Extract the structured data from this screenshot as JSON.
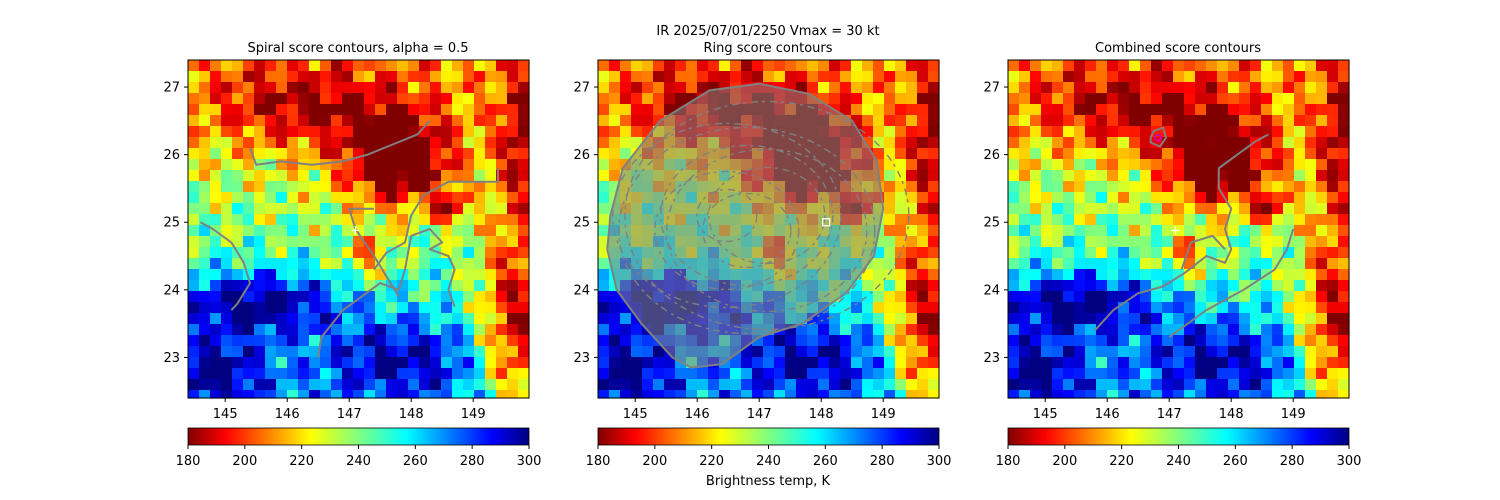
{
  "figure": {
    "suptitle_line1": "IR  2025/07/01/2250    Vmax = 30 kt",
    "colorbar_label": "Brightness temp, K"
  },
  "panels": [
    {
      "title": "Spiral score contours, alpha =  0.5",
      "marker": "plus"
    },
    {
      "title": "Ring score contours",
      "marker": "square"
    },
    {
      "title": "Combined score contours",
      "marker": "plus"
    }
  ],
  "colors": {
    "contour": "#808080",
    "marker": "#ffffff",
    "peak_marker": "#cc00cc"
  },
  "chart_data": [
    {
      "type": "heatmap",
      "title": "Spiral score contours, alpha =  0.5",
      "xlim": [
        144.4,
        149.9
      ],
      "ylim": [
        22.4,
        27.4
      ],
      "xticks": [
        145,
        146,
        147,
        148,
        149
      ],
      "yticks": [
        23,
        24,
        25,
        26,
        27
      ],
      "colormap": "jet_r",
      "colorbar": {
        "range": [
          180,
          300
        ],
        "ticks": [
          180,
          200,
          220,
          240,
          260,
          280,
          300
        ]
      },
      "center_marker": {
        "lon": 147.1,
        "lat": 24.88
      },
      "contours": [
        [
          [
            145.4,
            26.1
          ],
          [
            145.5,
            25.85
          ],
          [
            145.9,
            25.9
          ],
          [
            146.4,
            25.85
          ],
          [
            146.9,
            25.9
          ],
          [
            147.3,
            26.0
          ],
          [
            147.7,
            26.15
          ],
          [
            148.1,
            26.3
          ],
          [
            148.3,
            26.5
          ]
        ],
        [
          [
            144.6,
            25.0
          ],
          [
            144.8,
            24.9
          ],
          [
            145.1,
            24.7
          ],
          [
            145.3,
            24.4
          ],
          [
            145.4,
            24.1
          ],
          [
            145.2,
            23.8
          ],
          [
            145.1,
            23.7
          ]
        ],
        [
          [
            146.5,
            23.0
          ],
          [
            146.55,
            23.3
          ],
          [
            146.9,
            23.7
          ],
          [
            147.2,
            23.9
          ],
          [
            147.5,
            24.1
          ],
          [
            147.8,
            24.0
          ],
          [
            147.9,
            24.3
          ],
          [
            148.0,
            24.8
          ],
          [
            148.3,
            24.9
          ],
          [
            148.5,
            24.7
          ],
          [
            148.3,
            24.6
          ],
          [
            148.6,
            24.5
          ],
          [
            148.7,
            24.3
          ],
          [
            148.6,
            24.0
          ],
          [
            148.7,
            23.75
          ]
        ],
        [
          [
            147.4,
            24.3
          ],
          [
            147.6,
            24.55
          ],
          [
            147.9,
            24.7
          ],
          [
            148.0,
            25.1
          ],
          [
            148.2,
            25.4
          ],
          [
            148.6,
            25.6
          ],
          [
            149.0,
            25.6
          ],
          [
            149.4,
            25.6
          ],
          [
            149.4,
            25.8
          ]
        ],
        [
          [
            147.8,
            23.9
          ],
          [
            147.4,
            24.5
          ],
          [
            147.1,
            24.9
          ],
          [
            147.0,
            25.2
          ],
          [
            147.4,
            25.2
          ]
        ]
      ]
    },
    {
      "type": "heatmap",
      "title": "Ring score contours",
      "xlim": [
        144.4,
        149.9
      ],
      "ylim": [
        22.4,
        27.4
      ],
      "xticks": [
        145,
        146,
        147,
        148,
        149
      ],
      "yticks": [
        23,
        24,
        25,
        26,
        27
      ],
      "colormap": "jet_r",
      "colorbar": {
        "range": [
          180,
          300
        ],
        "ticks": [
          180,
          200,
          220,
          240,
          260,
          280,
          300
        ]
      },
      "center_marker": {
        "lon": 148.08,
        "lat": 25.0
      },
      "contour_region": [
        [
          144.6,
          25.1
        ],
        [
          144.8,
          25.8
        ],
        [
          145.4,
          26.5
        ],
        [
          146.2,
          26.95
        ],
        [
          147.0,
          27.05
        ],
        [
          147.8,
          26.9
        ],
        [
          148.5,
          26.5
        ],
        [
          148.9,
          25.9
        ],
        [
          149.0,
          25.2
        ],
        [
          148.85,
          24.5
        ],
        [
          148.4,
          23.95
        ],
        [
          147.7,
          23.5
        ],
        [
          147.0,
          23.3
        ],
        [
          146.4,
          22.9
        ],
        [
          145.9,
          22.85
        ],
        [
          145.6,
          23.0
        ],
        [
          145.1,
          23.5
        ],
        [
          144.7,
          24.0
        ],
        [
          144.55,
          24.6
        ]
      ],
      "contours": []
    },
    {
      "type": "heatmap",
      "title": "Combined score contours",
      "xlim": [
        144.4,
        149.9
      ],
      "ylim": [
        22.4,
        27.4
      ],
      "xticks": [
        145,
        146,
        147,
        148,
        149
      ],
      "yticks": [
        23,
        24,
        25,
        26,
        27
      ],
      "colormap": "jet_r",
      "colorbar": {
        "range": [
          180,
          300
        ],
        "ticks": [
          180,
          200,
          220,
          240,
          260,
          280,
          300
        ]
      },
      "center_marker": {
        "lon": 147.1,
        "lat": 24.88
      },
      "peak_marker": {
        "lon": 146.82,
        "lat": 26.25
      },
      "contours": [
        [
          [
            145.8,
            23.4
          ],
          [
            146.1,
            23.7
          ],
          [
            146.5,
            23.95
          ],
          [
            146.9,
            24.05
          ],
          [
            147.25,
            24.25
          ],
          [
            147.6,
            24.5
          ],
          [
            147.9,
            24.4
          ],
          [
            148.0,
            24.6
          ],
          [
            147.9,
            24.9
          ],
          [
            148.0,
            25.2
          ],
          [
            147.8,
            25.5
          ],
          [
            147.8,
            25.8
          ],
          [
            148.1,
            26.0
          ],
          [
            148.4,
            26.2
          ],
          [
            148.6,
            26.3
          ]
        ],
        [
          [
            147.2,
            24.3
          ],
          [
            147.35,
            24.7
          ],
          [
            147.7,
            24.8
          ],
          [
            147.9,
            24.6
          ]
        ],
        [
          [
            147.0,
            23.3
          ],
          [
            147.6,
            23.7
          ],
          [
            148.2,
            24.0
          ],
          [
            148.7,
            24.3
          ],
          [
            148.9,
            24.6
          ],
          [
            149.0,
            24.9
          ]
        ],
        [
          [
            146.7,
            26.25
          ],
          [
            146.75,
            26.35
          ],
          [
            146.9,
            26.4
          ],
          [
            146.95,
            26.25
          ],
          [
            146.85,
            26.12
          ],
          [
            146.7,
            26.18
          ],
          [
            146.7,
            26.25
          ]
        ]
      ]
    }
  ]
}
